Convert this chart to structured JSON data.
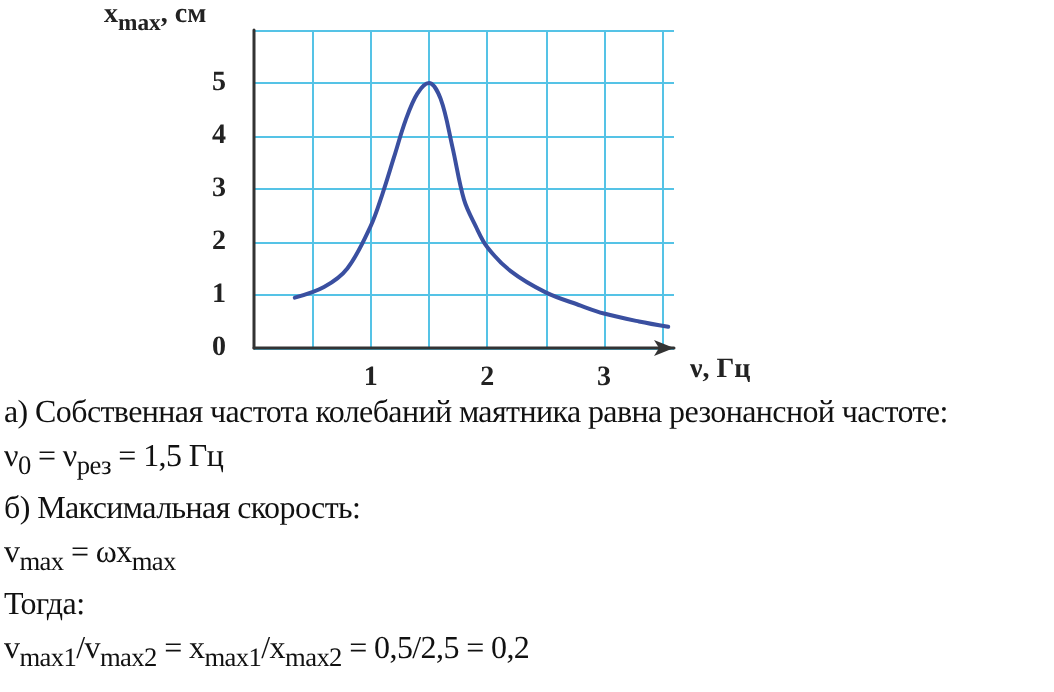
{
  "chart_data": {
    "type": "line",
    "xlabel": "ν, Гц",
    "ylabel": "x$_{max}$, см",
    "x": [
      0.35,
      0.6,
      0.8,
      1.0,
      1.1,
      1.2,
      1.3,
      1.4,
      1.5,
      1.6,
      1.7,
      1.8,
      1.9,
      2.0,
      2.2,
      2.5,
      2.8,
      3.0,
      3.3,
      3.55
    ],
    "series": [
      {
        "color": "#3a4fa0",
        "values": [
          0.95,
          1.15,
          1.5,
          2.3,
          2.9,
          3.6,
          4.3,
          4.8,
          5.0,
          4.7,
          3.8,
          2.8,
          2.3,
          1.9,
          1.45,
          1.05,
          0.8,
          0.65,
          0.5,
          0.4
        ]
      }
    ],
    "xlim": [
      0,
      3.6
    ],
    "xticks": [
      {
        "value": 0.5,
        "label": null
      },
      1,
      {
        "value": 1.5,
        "label": null
      },
      2,
      {
        "value": 2.5,
        "label": null
      },
      3,
      {
        "value": 3.5,
        "label": null
      }
    ],
    "ylim": [
      0,
      6
    ],
    "yticks": [
      0,
      1,
      2,
      3,
      4,
      5,
      {
        "value": 6,
        "label": null
      }
    ],
    "grid": true,
    "marker": "none",
    "line_style": "solid",
    "annotations": [
      "а) Собственная частота колебаний маятника равна резонансной частоте:",
      "ν$_{0}$ = ν$_{рез}$ = 1,5 Гц",
      "б) Максимальная скорость:",
      "v$_{max}$ = ωx$_{max}$",
      "Тогда:",
      "v$_{max1}$/v$_{max2}$ = x$_{max1}$/x$_{max2}$ = 0,5/2,5 = 0,2"
    ]
  }
}
